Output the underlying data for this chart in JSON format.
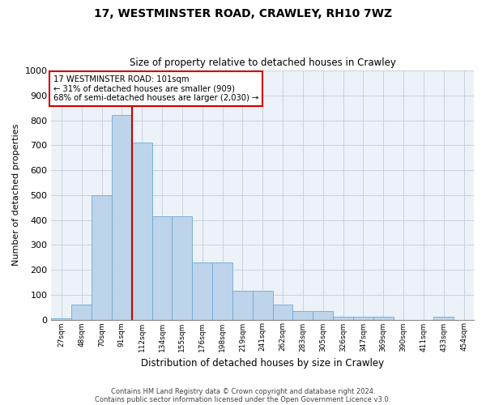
{
  "title1": "17, WESTMINSTER ROAD, CRAWLEY, RH10 7WZ",
  "title2": "Size of property relative to detached houses in Crawley",
  "xlabel": "Distribution of detached houses by size in Crawley",
  "ylabel": "Number of detached properties",
  "footnote1": "Contains HM Land Registry data © Crown copyright and database right 2024.",
  "footnote2": "Contains public sector information licensed under the Open Government Licence v3.0.",
  "annotation_line1": "17 WESTMINSTER ROAD: 101sqm",
  "annotation_line2": "← 31% of detached houses are smaller (909)",
  "annotation_line3": "68% of semi-detached houses are larger (2,030) →",
  "bar_color": "#bdd4ea",
  "bar_edge_color": "#6aaad4",
  "grid_color": "#c8d0dc",
  "vline_color": "#cc0000",
  "annotation_box_edge": "#cc0000",
  "bins": [
    "27sqm",
    "48sqm",
    "70sqm",
    "91sqm",
    "112sqm",
    "134sqm",
    "155sqm",
    "176sqm",
    "198sqm",
    "219sqm",
    "241sqm",
    "262sqm",
    "283sqm",
    "305sqm",
    "326sqm",
    "347sqm",
    "369sqm",
    "390sqm",
    "411sqm",
    "433sqm",
    "454sqm"
  ],
  "values": [
    5,
    60,
    500,
    820,
    710,
    415,
    415,
    230,
    230,
    115,
    115,
    60,
    35,
    35,
    10,
    10,
    10,
    0,
    0,
    10,
    0
  ],
  "ylim": [
    0,
    1000
  ],
  "vline_x": 3.5,
  "background_color": "#edf2f9"
}
